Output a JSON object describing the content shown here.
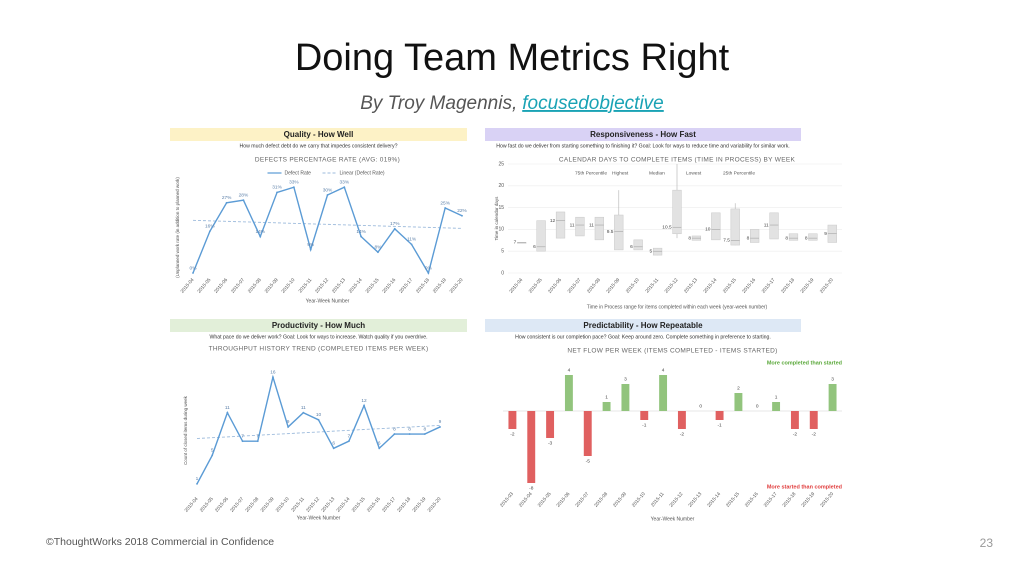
{
  "slide": {
    "title": "Doing Team Metrics Right",
    "byline": "By Troy Magennis,",
    "link": "focusedobjective",
    "footer": "©ThoughtWorks 2018 Commercial in Confidence",
    "page_number": "23"
  },
  "chart_data": [
    {
      "type": "line",
      "header": "Quality - How Well",
      "header_color": "#fdf2c6",
      "question": "How much defect debt do we carry that impedes consistent delivery?",
      "title": "DEFECTS PERCENTAGE RATE (AVG: 019%)",
      "ylabel": "(Unplanned work rate (in addition to planned work)",
      "xlabel": "Year-Week Number",
      "categories": [
        "2015-04",
        "2015-05",
        "2015-06",
        "2015-07",
        "2015-08",
        "2015-09",
        "2015-10",
        "2015-11",
        "2015-12",
        "2015-13",
        "2015-14",
        "2015-15",
        "2015-16",
        "2015-17",
        "2015-18",
        "2015-19",
        "2015-20"
      ],
      "series": [
        {
          "name": "Defect Rate",
          "color": "#5b9bd5",
          "values": [
            0,
            16,
            27,
            28,
            14,
            31,
            33,
            9,
            30,
            33,
            14,
            8,
            17,
            11,
            0,
            25,
            22
          ],
          "value_labels": [
            "0%",
            "16%",
            "27%",
            "28%",
            "14%",
            "31%",
            "33%",
            "9%",
            "30%",
            "33%",
            "14%",
            "8%",
            "17%",
            "11%",
            "0%",
            "25%",
            "22%"
          ]
        }
      ],
      "trendline": true,
      "trend_name": "Linear (Defect Rate)",
      "ylim": [
        0,
        35
      ]
    },
    {
      "type": "box",
      "header": "Responsiveness - How Fast",
      "header_color": "#d9d2f5",
      "question": "How fast do we deliver from starting something to finishing it? Goal: Look for ways to reduce time and variability for similar work.",
      "title": "CALENDAR DAYS TO COMPLETE ITEMS (TIME IN PROCESS) BY WEEK",
      "ylabel": "Time in calendar days",
      "xlabel": "Time in Process range for items completed within each week (year-week number)",
      "categories": [
        "2015-04",
        "2015-05",
        "2015-06",
        "2015-07",
        "2015-08",
        "2015-09",
        "2015-10",
        "2015-11",
        "2015-12",
        "2015-13",
        "2015-14",
        "2015-15",
        "2015-16",
        "2015-17",
        "2015-18",
        "2015-19",
        "2015-20"
      ],
      "series": [
        {
          "name": "75th Percentile",
          "values": [
            7,
            12,
            14,
            12.8,
            12.8,
            13.3,
            7.6,
            5.7,
            19,
            8.5,
            13.8,
            14.7,
            10,
            13.8,
            9,
            9,
            11
          ]
        },
        {
          "name": "Highest",
          "values": [
            7,
            12,
            14,
            12.8,
            12.8,
            19,
            7.6,
            5.7,
            25,
            8.5,
            13.8,
            16,
            10,
            13.8,
            9,
            9,
            11
          ]
        },
        {
          "name": "Median",
          "values": [
            7,
            6,
            12,
            11,
            11,
            9.5,
            6,
            5,
            10.5,
            8,
            10,
            7.5,
            8,
            11,
            8,
            8,
            9
          ]
        },
        {
          "name": "Lowest",
          "values": [
            7,
            5,
            8,
            8.5,
            7.6,
            5.3,
            5.3,
            4.1,
            8,
            7.5,
            7.6,
            6.4,
            7,
            7.8,
            7.5,
            7.5,
            7
          ]
        },
        {
          "name": "25th Percentile",
          "values": [
            7,
            5,
            8,
            8.5,
            7.6,
            5.3,
            5.3,
            4.1,
            9,
            7.5,
            7.6,
            6.4,
            7,
            7.8,
            7.5,
            7.5,
            7
          ]
        }
      ],
      "ylim": [
        0,
        25
      ],
      "yticks": [
        0,
        5,
        10,
        15,
        20,
        25
      ],
      "grid": true
    },
    {
      "type": "line",
      "header": "Productivity - How Much",
      "header_color": "#e2efd9",
      "question": "What pace do we deliver work? Goal: Look for ways to increase. Watch quality if you overdrive.",
      "title": "THROUGHPUT  HISTORY TREND (COMPLETED ITEMS PER WEEK)",
      "ylabel": "Count of closed items during week",
      "xlabel": "Year-Week Number",
      "categories": [
        "2015-04",
        "2015-05",
        "2015-06",
        "2015-07",
        "2015-08",
        "2015-09",
        "2015-10",
        "2015-11",
        "2015-12",
        "2015-13",
        "2015-14",
        "2015-15",
        "2015-16",
        "2015-17",
        "2015-18",
        "2015-19",
        "2015-20"
      ],
      "values": [
        1,
        5,
        11,
        7,
        7,
        16,
        9,
        11,
        10,
        6,
        7,
        12,
        6,
        8,
        8,
        8,
        9
      ],
      "color": "#5b9bd5",
      "trendline": true,
      "ylim": [
        0,
        17
      ]
    },
    {
      "type": "bar",
      "header": "Predictability - How Repeatable",
      "header_color": "#dde8f5",
      "question": "How consistent is our completion pace? Goal: Keep around zero. Complete something in preference to starting.",
      "title": "NET FLOW PER WEEK (ITEMS COMPLETED - ITEMS STARTED)",
      "xlabel": "Year-Week Number",
      "categories": [
        "2015-03",
        "2015-04",
        "2015-05",
        "2015-06",
        "2015-07",
        "2015-08",
        "2015-09",
        "2015-10",
        "2015-11",
        "2015-12",
        "2015-13",
        "2015-14",
        "2015-15",
        "2015-16",
        "2015-17",
        "2015-18",
        "2015-19",
        "2015-20"
      ],
      "values": [
        -2,
        -8,
        -3,
        4,
        -5,
        1,
        3,
        -1,
        4,
        -2,
        0,
        -1,
        2,
        0,
        1,
        -2,
        -2,
        3
      ],
      "positive_color": "#92c47d",
      "negative_color": "#e06060",
      "annotations": [
        {
          "text": "More completed than started",
          "color": "#5aa83a"
        },
        {
          "text": "More started than completed",
          "color": "#e03c3c"
        }
      ],
      "ylim": [
        -8,
        4
      ]
    }
  ]
}
